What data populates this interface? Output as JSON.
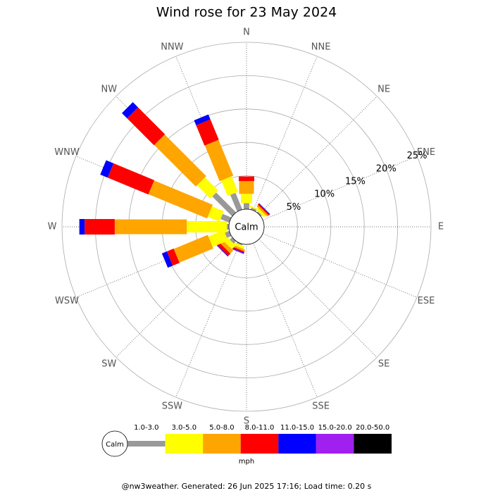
{
  "chart_data": {
    "type": "windrose",
    "title": "Wind rose for 23 May 2024",
    "directions": [
      "N",
      "NNE",
      "NE",
      "ENE",
      "E",
      "ESE",
      "SE",
      "SSE",
      "S",
      "SSW",
      "SW",
      "WSW",
      "W",
      "WNW",
      "NW",
      "NNW"
    ],
    "series": [
      {
        "name": "1.0-3.0",
        "color": "#999999",
        "values": [
          0.9,
          0.3,
          0.2,
          0,
          0,
          0,
          0,
          0,
          0,
          0.2,
          0.5,
          0.7,
          0.3,
          1.4,
          4.2,
          2.7
        ]
      },
      {
        "name": "3.0-5.0",
        "color": "#ffff00",
        "values": [
          1.4,
          0.2,
          0.4,
          0,
          0,
          0,
          0,
          0,
          0,
          0.4,
          0.8,
          2.5,
          6.0,
          1.9,
          2.8,
          2.5
        ]
      },
      {
        "name": "5.0-8.0",
        "color": "#ffa500",
        "values": [
          1.9,
          0,
          0.3,
          0,
          0,
          0,
          0,
          0,
          0,
          0.3,
          0.6,
          5.5,
          10.8,
          9.5,
          8.8,
          5.8
        ]
      },
      {
        "name": "8.0-11.0",
        "color": "#ff0000",
        "values": [
          0.7,
          0,
          0.2,
          0,
          0,
          0,
          0,
          0,
          0,
          0.2,
          0.5,
          1.1,
          4.5,
          6.6,
          5.7,
          3.3
        ]
      },
      {
        "name": "11.0-15.0",
        "color": "#0000ff",
        "values": [
          0,
          0,
          0.1,
          0,
          0,
          0,
          0,
          0,
          0,
          0.1,
          0.1,
          0.8,
          0.8,
          1.2,
          1.1,
          0.8
        ]
      },
      {
        "name": "15.0-20.0",
        "color": "#a020f0",
        "values": [
          0,
          0,
          0,
          0,
          0,
          0,
          0,
          0,
          0,
          0.1,
          0,
          0,
          0,
          0,
          0,
          0
        ]
      },
      {
        "name": "20.0-50.0",
        "color": "#000000",
        "values": [
          0,
          0,
          0,
          0,
          0,
          0,
          0,
          0,
          0,
          0,
          0,
          0,
          0,
          0,
          0,
          0
        ]
      }
    ],
    "rlim": [
      0,
      25
    ],
    "rticks": [
      {
        "value": 5,
        "label": "5%"
      },
      {
        "value": 10,
        "label": "10%"
      },
      {
        "value": 15,
        "label": "15%"
      },
      {
        "value": 20,
        "label": "20%"
      },
      {
        "value": 25,
        "label": "25%"
      }
    ],
    "calm_label": "Calm",
    "unit": "mph",
    "footer": "@nw3weather. Generated: 26 Jun 2025 17:16; Load time: 0.20 s"
  }
}
